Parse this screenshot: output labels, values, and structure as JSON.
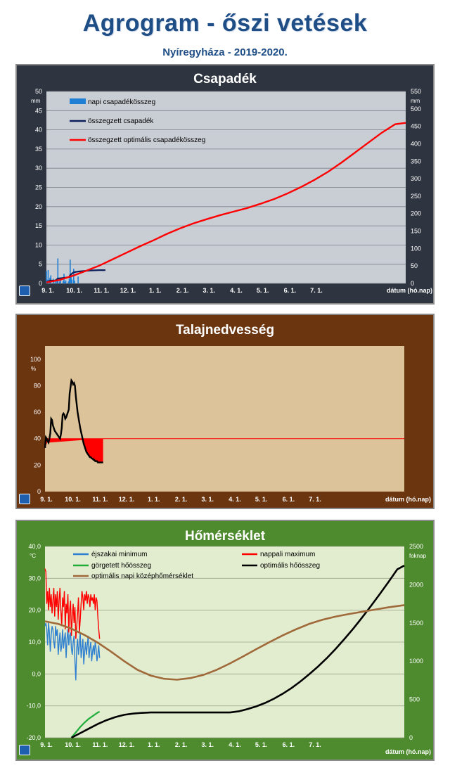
{
  "header": {
    "title": "Agrogram - őszi vetések",
    "subtitle": "Nyíregyháza  - 2019-2020."
  },
  "chart_data": [
    {
      "type": "bar",
      "title": "Csapadék",
      "x_ticks": [
        "9. 1.",
        "10. 1.",
        "11. 1.",
        "12. 1.",
        "1. 1.",
        "2. 1.",
        "3. 1.",
        "4. 1.",
        "5. 1.",
        "6. 1.",
        "7. 1."
      ],
      "xlabel": "dátum (hó.nap)",
      "y_left_unit": "mm",
      "y_right_unit": "mm",
      "y_left_ticks": [
        0,
        5,
        10,
        15,
        20,
        25,
        30,
        35,
        40,
        45,
        50
      ],
      "y_right_ticks": [
        0,
        50,
        100,
        150,
        200,
        250,
        300,
        350,
        400,
        450,
        500,
        550
      ],
      "ylim_left": [
        0,
        50
      ],
      "ylim_right": [
        0,
        550
      ],
      "grid": true,
      "legend_position": "top-left",
      "series": [
        {
          "name": "napi csapadékösszeg",
          "axis": "left",
          "kind": "bar",
          "color": "#1f7fd4",
          "x": [
            0,
            1,
            2,
            4,
            5,
            8,
            10,
            12,
            13,
            15,
            16,
            19,
            20,
            21,
            22,
            25,
            26,
            27,
            28,
            29,
            31,
            32,
            36
          ],
          "values": [
            3.2,
            1.0,
            3.5,
            1.5,
            2.1,
            1.2,
            0.5,
            0.8,
            6.5,
            0.5,
            1.0,
            0.6,
            2.5,
            0.4,
            0.8,
            0.5,
            1.2,
            6.2,
            2.0,
            1.0,
            3.8,
            0.7,
            1.8
          ]
        },
        {
          "name": "összegzett csapadék",
          "axis": "right",
          "kind": "line",
          "color": "#0d1f5a",
          "x": [
            0,
            4,
            10,
            13,
            20,
            26,
            27,
            29,
            31,
            36,
            45,
            50,
            60,
            67
          ],
          "values": [
            3,
            8,
            8,
            14,
            16,
            18,
            24,
            28,
            32,
            34,
            36,
            37,
            38,
            38
          ]
        },
        {
          "name": "összegzett optimális csapadékösszeg",
          "axis": "right",
          "kind": "line",
          "color": "#ff0000",
          "x": [
            0,
            15,
            30,
            45,
            61,
            76,
            91,
            106,
            122,
            137,
            152,
            167,
            182,
            198,
            213,
            228,
            243,
            259,
            274,
            289,
            304,
            320,
            335,
            350,
            366,
            381,
            396,
            408
          ],
          "values": [
            3,
            10,
            22,
            36,
            52,
            70,
            88,
            106,
            124,
            142,
            158,
            172,
            184,
            196,
            206,
            216,
            228,
            242,
            258,
            276,
            296,
            320,
            346,
            374,
            404,
            432,
            456,
            460
          ]
        }
      ]
    },
    {
      "type": "line",
      "title": "Talajnedvesség",
      "x_ticks": [
        "9. 1.",
        "10. 1.",
        "11. 1.",
        "12. 1.",
        "1. 1.",
        "2. 1.",
        "3. 1.",
        "4. 1.",
        "5. 1.",
        "6. 1.",
        "7. 1."
      ],
      "xlabel": "dátum (hó.nap)",
      "y_unit": "%",
      "y_ticks": [
        0,
        20,
        40,
        60,
        80,
        100
      ],
      "ylim": [
        0,
        110
      ],
      "threshold": 40,
      "grid": false,
      "series": [
        {
          "name": "",
          "color": "#000000",
          "x": [
            0,
            1,
            2,
            3,
            4,
            5,
            6,
            7,
            8,
            9,
            10,
            11,
            12,
            13,
            14,
            15,
            16,
            17,
            18,
            19,
            20,
            21,
            22,
            23,
            24,
            25,
            26,
            27,
            28,
            29,
            30,
            31,
            32,
            33,
            34,
            35,
            36,
            37,
            38,
            39,
            40,
            41,
            42,
            43,
            44,
            45,
            46,
            47,
            48,
            49,
            50,
            51,
            52,
            53,
            54,
            55,
            56,
            57,
            58,
            59,
            60,
            61,
            62,
            63,
            64,
            65,
            66
          ],
          "values": [
            33,
            41,
            40,
            38,
            37,
            40,
            44,
            55,
            54,
            50,
            48,
            46,
            45,
            44,
            43,
            42,
            41,
            40,
            43,
            48,
            58,
            59,
            58,
            55,
            56,
            58,
            60,
            62,
            74,
            79,
            84,
            83,
            81,
            82,
            80,
            72,
            66,
            60,
            56,
            52,
            48,
            45,
            42,
            39,
            36,
            34,
            32,
            30,
            29,
            28,
            27,
            26,
            26,
            25,
            25,
            24,
            24,
            23,
            23,
            23,
            22,
            22,
            22,
            22,
            22,
            22,
            22
          ]
        }
      ]
    },
    {
      "type": "line",
      "title": "Hőmérséklet",
      "x_ticks": [
        "9. 1.",
        "10. 1.",
        "11. 1.",
        "12. 1.",
        "1. 1.",
        "2. 1.",
        "3. 1.",
        "4. 1.",
        "5. 1.",
        "6. 1.",
        "7. 1."
      ],
      "xlabel": "dátum (hó.nap)",
      "y_left_unit": "°C",
      "y_right_unit": "foknap",
      "y_left_ticks": [
        "-20,0",
        "-10,0",
        "0,0",
        "10,0",
        "20,0",
        "30,0",
        "40,0"
      ],
      "y_right_ticks": [
        0,
        500,
        1000,
        1500,
        2000,
        2500
      ],
      "ylim_left": [
        -20,
        40
      ],
      "ylim_right": [
        0,
        2500
      ],
      "grid": true,
      "legend_position": "top",
      "series": [
        {
          "name": "éjszakai minimum",
          "axis": "left",
          "color": "#2f80d0",
          "x": [
            0,
            1,
            2,
            3,
            4,
            5,
            6,
            7,
            8,
            9,
            10,
            11,
            12,
            13,
            14,
            15,
            16,
            17,
            18,
            19,
            20,
            21,
            22,
            23,
            24,
            25,
            26,
            27,
            28,
            29,
            30,
            31,
            32,
            33,
            34,
            35,
            36,
            37,
            38,
            39,
            40,
            41,
            42,
            43,
            44,
            45,
            46,
            47,
            48,
            49,
            50,
            51,
            52,
            53,
            54,
            55,
            56,
            57,
            58,
            59,
            60,
            61,
            62
          ],
          "values": [
            15,
            16,
            14,
            9,
            16,
            13,
            7,
            12,
            15,
            14,
            10,
            8,
            15,
            12,
            14,
            6,
            10,
            13,
            7,
            9,
            14,
            8,
            11,
            13,
            5,
            11,
            14,
            9,
            12,
            13,
            8,
            6,
            10,
            12,
            4,
            -2,
            8,
            11,
            6,
            9,
            13,
            5,
            8,
            11,
            3,
            7,
            10,
            6,
            9,
            12,
            5,
            8,
            10,
            4,
            7,
            9,
            6,
            10,
            8,
            4,
            6,
            9,
            5
          ]
        },
        {
          "name": "nappali maximum",
          "axis": "left",
          "color": "#ff0000",
          "x": [
            0,
            1,
            2,
            3,
            4,
            5,
            6,
            7,
            8,
            9,
            10,
            11,
            12,
            13,
            14,
            15,
            16,
            17,
            18,
            19,
            20,
            21,
            22,
            23,
            24,
            25,
            26,
            27,
            28,
            29,
            30,
            31,
            32,
            33,
            34,
            35,
            36,
            37,
            38,
            39,
            40,
            41,
            42,
            43,
            44,
            45,
            46,
            47,
            48,
            49,
            50,
            51,
            52,
            53,
            54,
            55,
            56,
            57,
            58,
            59,
            60,
            61,
            62
          ],
          "values": [
            33,
            32,
            22,
            26,
            20,
            27,
            21,
            25,
            19,
            23,
            27,
            18,
            25,
            21,
            26,
            17,
            23,
            27,
            20,
            15,
            24,
            21,
            26,
            14,
            22,
            19,
            25,
            13,
            20,
            23,
            12,
            18,
            22,
            16,
            21,
            11,
            15,
            19,
            24,
            13,
            17,
            22,
            26,
            24,
            20,
            25,
            23,
            26,
            22,
            25,
            24,
            21,
            25,
            23,
            24,
            22,
            25,
            20,
            24,
            23,
            18,
            14,
            11
          ]
        },
        {
          "name": "görgetett hőösszeg",
          "axis": "right",
          "color": "#1fae3a",
          "x": [
            30,
            35,
            40,
            45,
            50,
            55,
            60,
            62
          ],
          "values": [
            0,
            70,
            140,
            200,
            250,
            290,
            330,
            340
          ]
        },
        {
          "name": "optimális hőösszeg",
          "axis": "right",
          "color": "#000000",
          "x": [
            30,
            40,
            50,
            60,
            70,
            80,
            90,
            100,
            110,
            120,
            135,
            150,
            165,
            180,
            195,
            210,
            220,
            230,
            240,
            250,
            260,
            270,
            280,
            290,
            300,
            310,
            320,
            330,
            340,
            350,
            360,
            370,
            380,
            390,
            400,
            408
          ],
          "values": [
            0,
            60,
            120,
            180,
            230,
            270,
            300,
            315,
            325,
            330,
            330,
            330,
            330,
            330,
            330,
            330,
            345,
            375,
            410,
            455,
            510,
            575,
            650,
            735,
            830,
            930,
            1040,
            1160,
            1290,
            1425,
            1570,
            1720,
            1875,
            2035,
            2200,
            2250
          ]
        },
        {
          "name": "optimális napi középhőmérséklet",
          "axis": "left",
          "color": "#a0693a",
          "x": [
            0,
            15,
            30,
            45,
            60,
            75,
            90,
            105,
            120,
            135,
            150,
            165,
            180,
            195,
            210,
            225,
            240,
            255,
            270,
            285,
            300,
            315,
            330,
            345,
            360,
            375,
            390,
            408
          ],
          "values": [
            16.5,
            15.7,
            14.2,
            12.2,
            9.8,
            7.0,
            4.0,
            1.3,
            -0.5,
            -1.5,
            -1.8,
            -1.3,
            -0.3,
            1.3,
            3.3,
            5.5,
            7.8,
            10.0,
            12.1,
            14.0,
            15.7,
            17.0,
            18.0,
            18.8,
            19.5,
            20.2,
            20.9,
            21.6
          ]
        }
      ]
    }
  ]
}
